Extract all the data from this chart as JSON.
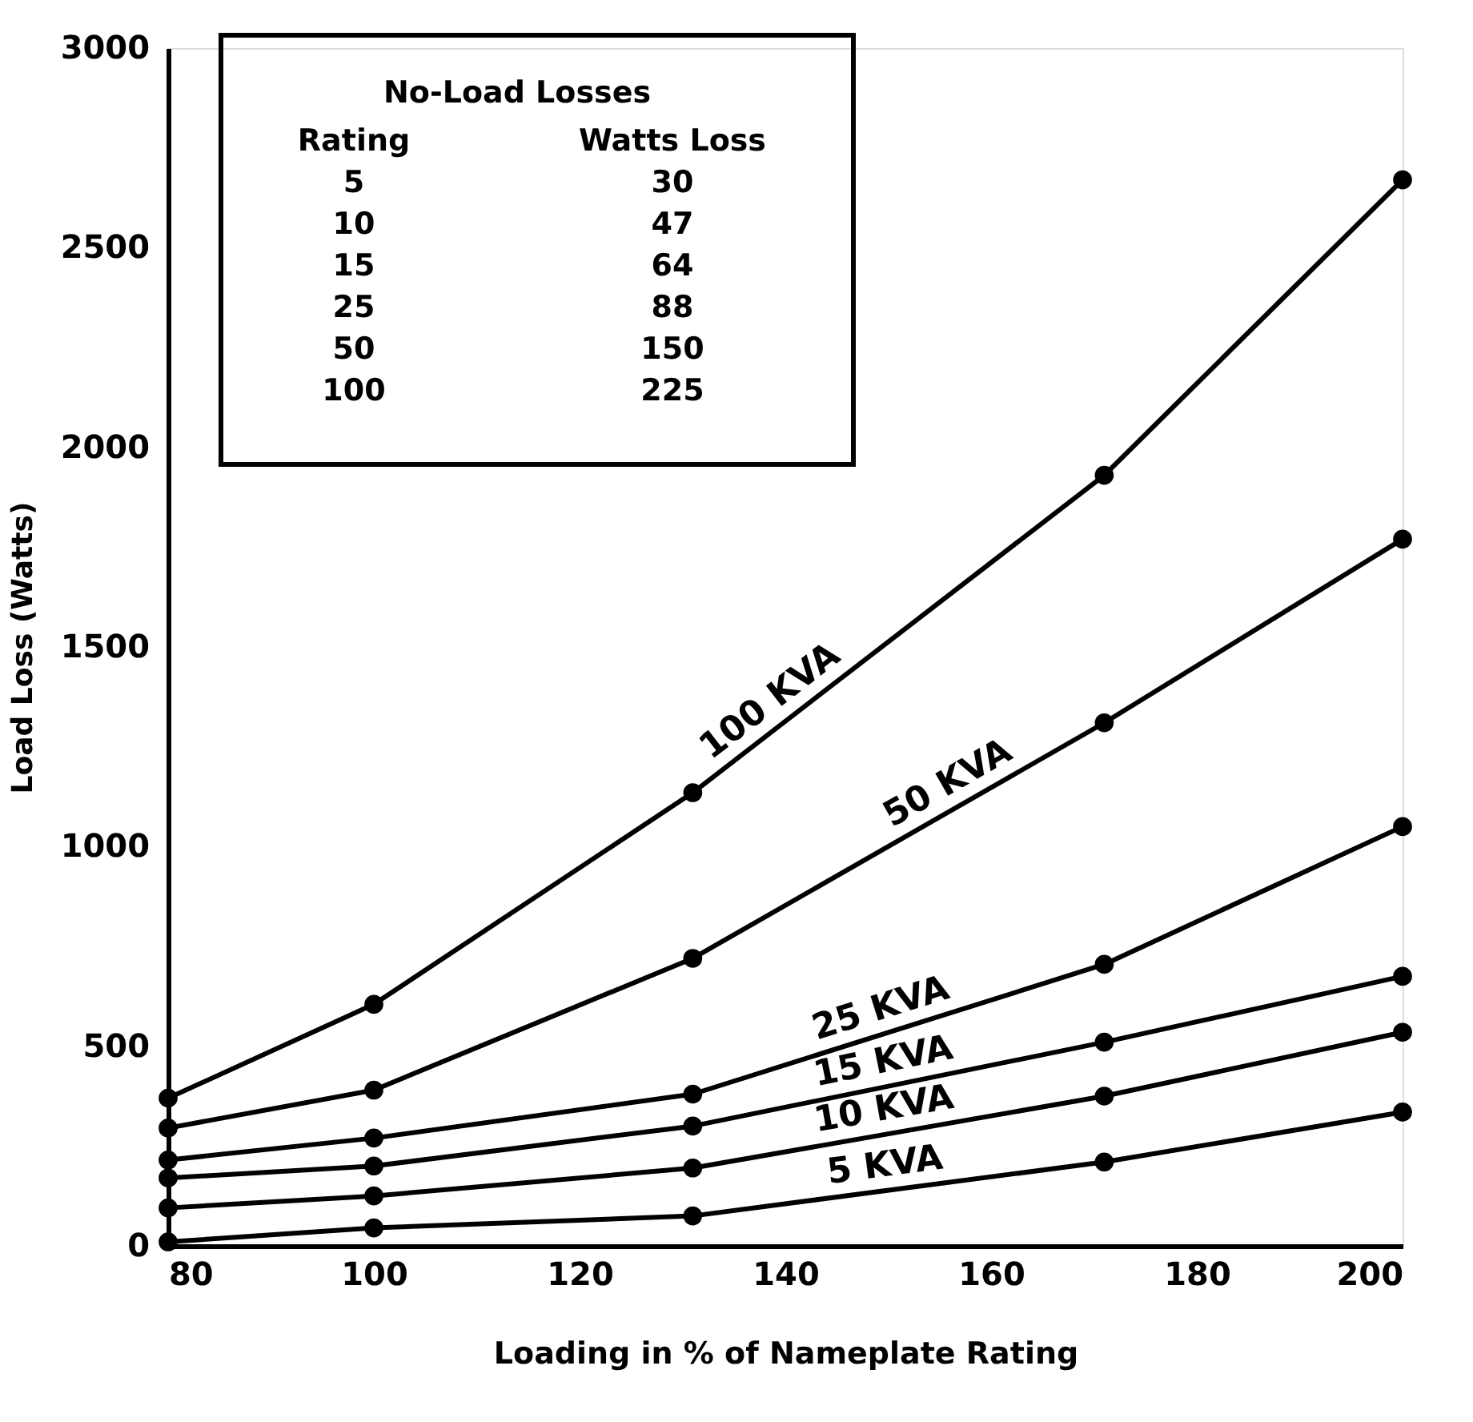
{
  "chart_data": {
    "type": "line",
    "xlabel": "Loading in % of Nameplate Rating",
    "ylabel": "Load Loss (Watts)",
    "x": [
      80,
      100,
      131,
      171,
      200
    ],
    "series": [
      {
        "name": "100 KVA",
        "color": "#000000",
        "values": [
          370,
          605,
          1135,
          1930,
          2670
        ]
      },
      {
        "name": "50 KVA",
        "color": "#000000",
        "values": [
          295,
          390,
          720,
          1310,
          1770
        ]
      },
      {
        "name": "25 KVA",
        "color": "#000000",
        "values": [
          215,
          270,
          380,
          705,
          1050
        ]
      },
      {
        "name": "15 KVA",
        "color": "#000000",
        "values": [
          170,
          200,
          300,
          510,
          675
        ]
      },
      {
        "name": "10 KVA",
        "color": "#000000",
        "values": [
          95,
          125,
          195,
          375,
          535
        ]
      },
      {
        "name": "5 KVA",
        "color": "#000000",
        "values": [
          10,
          45,
          75,
          210,
          335
        ]
      }
    ],
    "xlim": [
      80,
      200
    ],
    "xticks": [
      80,
      100,
      120,
      140,
      160,
      180,
      200
    ],
    "ylim": [
      0,
      3000
    ],
    "yticks": [
      0,
      500,
      1000,
      1500,
      2000,
      2500,
      3000
    ],
    "grid": false,
    "marker": "circle",
    "line_style": "solid",
    "annotations": [
      "No-Load Losses",
      "Rating",
      "Watts Loss",
      "5",
      "30",
      "10",
      "47",
      "15",
      "64",
      "25",
      "88",
      "50",
      "150",
      "100",
      "225"
    ]
  }
}
